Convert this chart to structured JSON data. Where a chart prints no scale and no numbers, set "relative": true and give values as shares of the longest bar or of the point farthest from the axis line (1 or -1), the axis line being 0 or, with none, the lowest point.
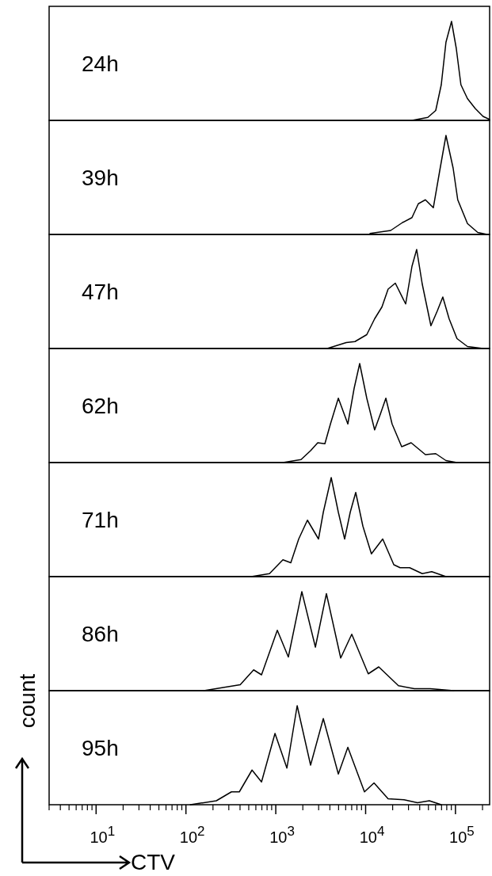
{
  "chart_data": [
    {
      "type": "line",
      "title": "24h",
      "relative": true,
      "log": "x",
      "xlim": [
        3,
        240000
      ],
      "tick_labels": false,
      "x": [
        32800,
        49200,
        60300,
        69500,
        78400,
        90400,
        102000,
        115000,
        136000,
        166000,
        203000,
        239000
      ],
      "series": [
        {
          "color": "#000000",
          "values": [
            0,
            0.03,
            0.1,
            0.36,
            0.79,
            1,
            0.73,
            0.36,
            0.22,
            0.12,
            0.04,
            0.01
          ]
        }
      ]
    },
    {
      "type": "line",
      "title": "39h",
      "relative": true,
      "log": "x",
      "xlim": [
        3,
        240000
      ],
      "tick_labels": false,
      "x": [
        11200,
        19000,
        25700,
        32800,
        38600,
        46300,
        56700,
        66700,
        78400,
        94200,
        106000,
        136000,
        177000,
        225000
      ],
      "series": [
        {
          "color": "#000000",
          "values": [
            0.01,
            0.04,
            0.12,
            0.17,
            0.31,
            0.35,
            0.27,
            0.64,
            1,
            0.67,
            0.35,
            0.11,
            0.02,
            0
          ]
        }
      ]
    },
    {
      "type": "line",
      "title": "47h",
      "relative": true,
      "log": "x",
      "xlim": [
        3,
        240000
      ],
      "tick_labels": false,
      "x": [
        3740,
        6090,
        7610,
        10300,
        12600,
        15200,
        17800,
        21400,
        27900,
        32800,
        37000,
        42700,
        53300,
        62800,
        72300,
        85000,
        104000,
        136000,
        203000
      ],
      "series": [
        {
          "color": "#000000",
          "values": [
            0,
            0.06,
            0.07,
            0.14,
            0.3,
            0.42,
            0.6,
            0.66,
            0.45,
            0.83,
            1,
            0.65,
            0.23,
            0.38,
            0.52,
            0.3,
            0.1,
            0.02,
            0
          ]
        }
      ]
    },
    {
      "type": "line",
      "title": "62h",
      "relative": true,
      "log": "x",
      "xlim": [
        3,
        240000
      ],
      "tick_labels": false,
      "x": [
        1200,
        1910,
        2440,
        2930,
        3520,
        4060,
        4970,
        6340,
        7450,
        8590,
        10300,
        12600,
        14600,
        16800,
        19700,
        25200,
        32100,
        46300,
        60300,
        78400,
        104000
      ],
      "series": [
        {
          "color": "#000000",
          "values": [
            0,
            0.03,
            0.12,
            0.2,
            0.19,
            0.39,
            0.65,
            0.39,
            0.75,
            1,
            0.65,
            0.33,
            0.49,
            0.65,
            0.39,
            0.16,
            0.2,
            0.08,
            0.09,
            0.02,
            0
          ]
        }
      ]
    },
    {
      "type": "line",
      "title": "71h",
      "relative": true,
      "log": "x",
      "xlim": [
        3,
        240000
      ],
      "tick_labels": false,
      "x": [
        533,
        851,
        1200,
        1470,
        1800,
        2250,
        2990,
        3380,
        4140,
        4970,
        5840,
        6740,
        7760,
        9320,
        11600,
        15500,
        20600,
        24200,
        30900,
        42700,
        54400,
        78400
      ],
      "series": [
        {
          "color": "#000000",
          "values": [
            0,
            0.03,
            0.17,
            0.14,
            0.38,
            0.57,
            0.38,
            0.65,
            1,
            0.65,
            0.38,
            0.65,
            0.85,
            0.51,
            0.23,
            0.38,
            0.12,
            0.09,
            0.09,
            0.03,
            0.05,
            0
          ]
        }
      ]
    },
    {
      "type": "line",
      "title": "86h",
      "relative": true,
      "log": "x",
      "xlim": [
        3,
        240000
      ],
      "tick_labels": false,
      "x": [
        158,
        402,
        567,
        694,
        1040,
        1380,
        1950,
        2760,
        3660,
        5280,
        7010,
        10700,
        14000,
        23200,
        34800,
        52300,
        96000
      ],
      "series": [
        {
          "color": "#000000",
          "values": [
            0,
            0.06,
            0.21,
            0.16,
            0.61,
            0.34,
            1,
            0.44,
            0.98,
            0.33,
            0.57,
            0.17,
            0.24,
            0.05,
            0.02,
            0.02,
            0
          ]
        }
      ]
    },
    {
      "type": "line",
      "title": "95h",
      "xlabel": "CTV",
      "ylabel": "count",
      "relative": true,
      "log": "x",
      "xlim": [
        3,
        240000
      ],
      "tick_labels": "x",
      "xticks": [
        {
          "value": 3,
          "label": null
        },
        {
          "value": 4,
          "label": null
        },
        {
          "value": 5,
          "label": null
        },
        {
          "value": 6,
          "label": null
        },
        {
          "value": 7,
          "label": null
        },
        {
          "value": 8,
          "label": null
        },
        {
          "value": 9,
          "label": null
        },
        {
          "value": 10,
          "label": "10$^{1}$"
        },
        {
          "value": 20,
          "label": null
        },
        {
          "value": 30,
          "label": null
        },
        {
          "value": 40,
          "label": null
        },
        {
          "value": 50,
          "label": null
        },
        {
          "value": 60,
          "label": null
        },
        {
          "value": 70,
          "label": null
        },
        {
          "value": 80,
          "label": null
        },
        {
          "value": 90,
          "label": null
        },
        {
          "value": 100,
          "label": "10$^{2}$"
        },
        {
          "value": 200,
          "label": null
        },
        {
          "value": 300,
          "label": null
        },
        {
          "value": 400,
          "label": null
        },
        {
          "value": 500,
          "label": null
        },
        {
          "value": 600,
          "label": null
        },
        {
          "value": 700,
          "label": null
        },
        {
          "value": 800,
          "label": null
        },
        {
          "value": 900,
          "label": null
        },
        {
          "value": 1000,
          "label": "10$^{3}$"
        },
        {
          "value": 2000,
          "label": null
        },
        {
          "value": 3000,
          "label": null
        },
        {
          "value": 4000,
          "label": null
        },
        {
          "value": 5000,
          "label": null
        },
        {
          "value": 6000,
          "label": null
        },
        {
          "value": 7000,
          "label": null
        },
        {
          "value": 8000,
          "label": null
        },
        {
          "value": 9000,
          "label": null
        },
        {
          "value": 10000,
          "label": "10$^{4}$"
        },
        {
          "value": 20000,
          "label": null
        },
        {
          "value": 30000,
          "label": null
        },
        {
          "value": 40000,
          "label": null
        },
        {
          "value": 50000,
          "label": null
        },
        {
          "value": 60000,
          "label": null
        },
        {
          "value": 70000,
          "label": null
        },
        {
          "value": 80000,
          "label": null
        },
        {
          "value": 90000,
          "label": null
        },
        {
          "value": 100000,
          "label": "10$^{5}$"
        },
        {
          "value": 200000,
          "label": null
        }
      ],
      "x": [
        112,
        218,
        321,
        393,
        544,
        694,
        980,
        1330,
        1730,
        2440,
        3380,
        4970,
        6340,
        9710,
        12400,
        17800,
        26800,
        37800,
        51200,
        69500
      ],
      "series": [
        {
          "color": "#000000",
          "values": [
            0,
            0.04,
            0.13,
            0.13,
            0.35,
            0.23,
            0.72,
            0.37,
            1,
            0.4,
            0.87,
            0.31,
            0.58,
            0.13,
            0.22,
            0.06,
            0.05,
            0.02,
            0.04,
            0
          ]
        }
      ]
    }
  ]
}
